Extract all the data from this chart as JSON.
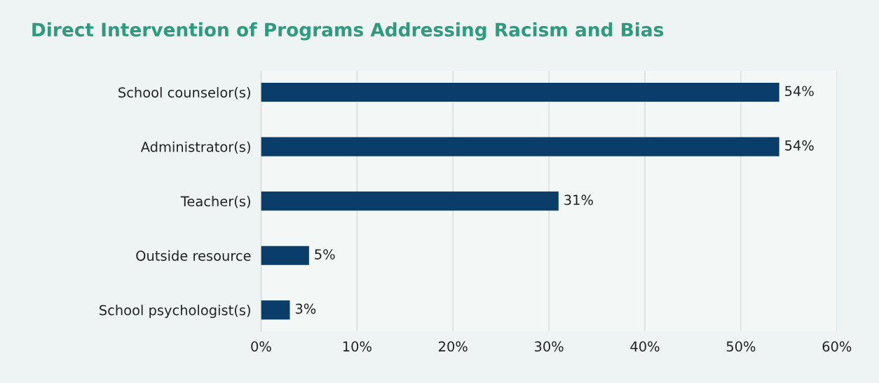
{
  "chart_data": {
    "type": "bar",
    "orientation": "horizontal",
    "title": "Direct Intervention of Programs Addressing Racism and Bias",
    "categories": [
      "School counselor(s)",
      "Administrator(s)",
      "Teacher(s)",
      "Outside resource",
      "School psychologist(s)"
    ],
    "values": [
      54,
      54,
      31,
      5,
      3
    ],
    "color": "#0b3d6b",
    "value_labels": [
      "54%",
      "54%",
      "31%",
      "5%",
      "3%"
    ],
    "xlim": [
      0,
      60
    ],
    "xticks": [
      {
        "value": 0,
        "label": "0%"
      },
      {
        "value": 10,
        "label": "10%"
      },
      {
        "value": 20,
        "label": "20%"
      },
      {
        "value": 30,
        "label": "30%"
      },
      {
        "value": 40,
        "label": "40%"
      },
      {
        "value": 50,
        "label": "50%"
      },
      {
        "value": 60,
        "label": "60%"
      }
    ],
    "grid": "x",
    "legend": false
  }
}
